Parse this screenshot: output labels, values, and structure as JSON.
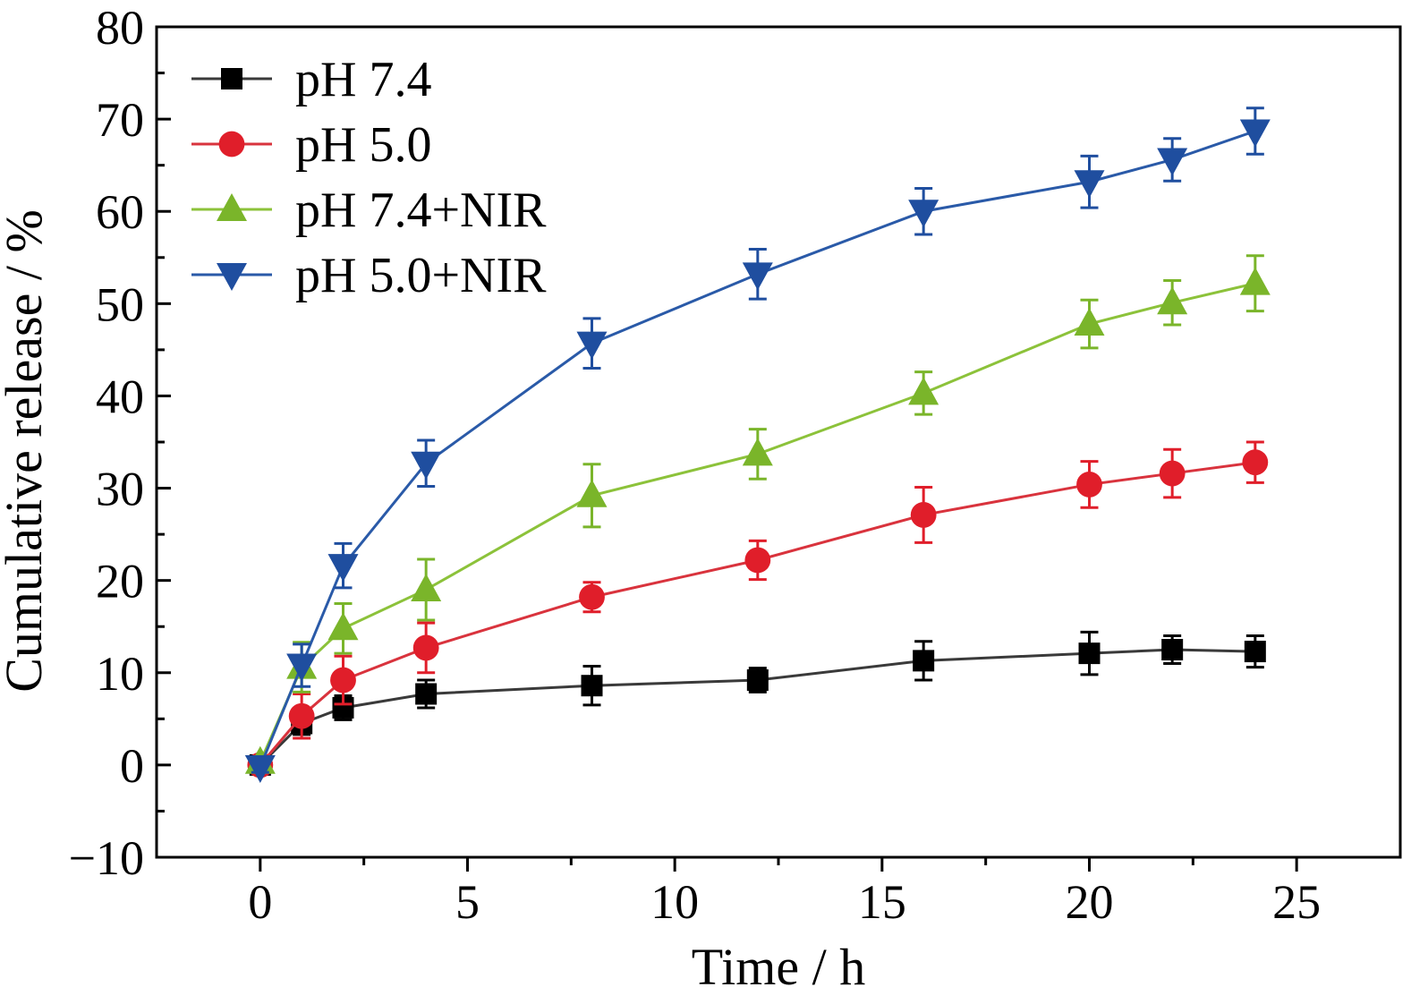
{
  "chart_data": {
    "type": "line",
    "title": "",
    "xlabel": "Time / h",
    "ylabel": "Cumulative release / %",
    "xlim": [
      -2.5,
      27.5
    ],
    "ylim": [
      -10,
      80
    ],
    "x_ticks": [
      0,
      5,
      10,
      15,
      20,
      25
    ],
    "y_ticks": [
      -10,
      0,
      10,
      20,
      30,
      40,
      50,
      60,
      70,
      80
    ],
    "x_tick_labels": [
      "0",
      "5",
      "10",
      "15",
      "20",
      "25"
    ],
    "y_tick_labels": [
      "−10",
      "0",
      "10",
      "20",
      "30",
      "40",
      "50",
      "60",
      "70",
      "80"
    ],
    "grid": false,
    "legend_position": "top-left",
    "x": [
      0,
      1,
      2,
      4,
      8,
      12,
      16,
      20,
      22,
      24
    ],
    "series": [
      {
        "name": "pH 7.4",
        "color": "#000000",
        "line_color": "#3a3a3a",
        "marker": "square",
        "values": [
          0,
          4.5,
          6.2,
          7.7,
          8.6,
          9.2,
          11.3,
          12.1,
          12.5,
          12.3
        ],
        "errors": [
          0.6,
          1.2,
          1.3,
          1.5,
          2.1,
          1.3,
          2.1,
          2.3,
          1.5,
          1.7
        ]
      },
      {
        "name": "pH 5.0",
        "color": "#e01e2a",
        "line_color": "#d9333d",
        "marker": "circle",
        "values": [
          0,
          5.3,
          9.2,
          12.7,
          18.2,
          22.2,
          27.1,
          30.4,
          31.6,
          32.8
        ],
        "errors": [
          0.6,
          2.4,
          2.6,
          2.7,
          1.6,
          2.1,
          3.0,
          2.5,
          2.6,
          2.2
        ]
      },
      {
        "name": "pH 7.4+NIR",
        "color": "#7ab52a",
        "line_color": "#8cc23a",
        "marker": "triangle-up",
        "values": [
          0.3,
          10.6,
          14.8,
          19.0,
          29.2,
          33.7,
          40.3,
          47.8,
          50.1,
          52.2
        ],
        "errors": [
          0.6,
          2.7,
          2.7,
          3.3,
          3.4,
          2.7,
          2.3,
          2.6,
          2.4,
          3.0
        ]
      },
      {
        "name": "pH 5.0+NIR",
        "color": "#1f4e9f",
        "line_color": "#2a5aa8",
        "marker": "triangle-down",
        "values": [
          -0.2,
          10.8,
          21.6,
          32.7,
          45.7,
          53.2,
          60.0,
          63.2,
          65.6,
          68.7
        ],
        "errors": [
          0.6,
          2.3,
          2.4,
          2.5,
          2.7,
          2.7,
          2.5,
          2.8,
          2.3,
          2.5
        ]
      }
    ]
  }
}
